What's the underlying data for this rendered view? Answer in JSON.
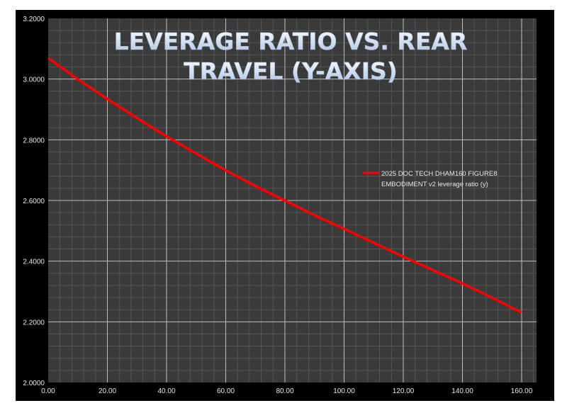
{
  "chart_data": {
    "type": "line",
    "title_lines": [
      "LEVERAGE RATIO VS. REAR",
      "TRAVEL (Y-AXIS)"
    ],
    "xlabel": "",
    "ylabel": "",
    "xlim": [
      0,
      165
    ],
    "ylim": [
      2.0,
      3.2
    ],
    "x_ticks": [
      "0.00",
      "20.00",
      "40.00",
      "60.00",
      "80.00",
      "100.00",
      "120.00",
      "140.00",
      "160.00"
    ],
    "y_ticks": [
      "2.0000",
      "2.2000",
      "2.4000",
      "2.6000",
      "2.8000",
      "3.0000",
      "3.2000"
    ],
    "grid": true,
    "legend_position": "right",
    "series": [
      {
        "name_lines": [
          "2025 DOC TECH DHAM160 FIGURE8",
          "EMBODIMENT v2 leverage ratio (y)"
        ],
        "color": "#ff0000",
        "x": [
          0,
          10,
          20,
          30,
          40,
          50,
          60,
          70,
          80,
          90,
          100,
          110,
          120,
          130,
          140,
          150,
          160
        ],
        "y": [
          3.07,
          3.0,
          2.935,
          2.872,
          2.812,
          2.755,
          2.7,
          2.648,
          2.6,
          2.552,
          2.507,
          2.461,
          2.415,
          2.371,
          2.327,
          2.28,
          2.231
        ]
      }
    ]
  },
  "colors": {
    "frame": "#000000",
    "plot_bg": "#3a3a3a",
    "major_grid": "#bdbdbd",
    "minor_grid": "#555555"
  }
}
